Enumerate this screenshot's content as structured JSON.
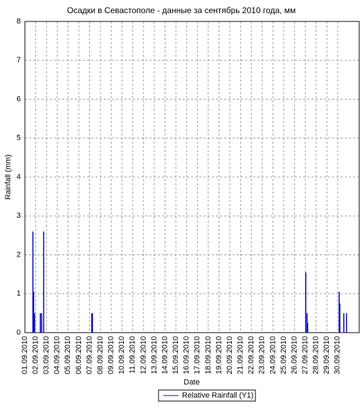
{
  "chart_data": {
    "type": "bar",
    "title": "Осадки в Севастополе - данные за сентябрь 2010 года, мм",
    "y_label": "Rainfall (mm)",
    "x_label": "Date",
    "xlim": [
      1,
      32
    ],
    "xticks": [
      {
        "value": 1,
        "label": "01.09.2010"
      },
      {
        "value": 2,
        "label": "02.09.2010"
      },
      {
        "value": 3,
        "label": "03.09.2010"
      },
      {
        "value": 4,
        "label": "04.09.2010"
      },
      {
        "value": 5,
        "label": "05.09.2010"
      },
      {
        "value": 6,
        "label": "06.09.2010"
      },
      {
        "value": 7,
        "label": "07.09.2010"
      },
      {
        "value": 8,
        "label": "08.09.2010"
      },
      {
        "value": 9,
        "label": "09.09.2010"
      },
      {
        "value": 10,
        "label": "10.09.2010"
      },
      {
        "value": 11,
        "label": "11.09.2010"
      },
      {
        "value": 12,
        "label": "12.09.2010"
      },
      {
        "value": 13,
        "label": "13.09.2010"
      },
      {
        "value": 14,
        "label": "14.09.2010"
      },
      {
        "value": 15,
        "label": "15.09.2010"
      },
      {
        "value": 16,
        "label": "16.09.2010"
      },
      {
        "value": 17,
        "label": "17.09.2010"
      },
      {
        "value": 18,
        "label": "18.09.2010"
      },
      {
        "value": 19,
        "label": "19.09.2010"
      },
      {
        "value": 20,
        "label": "20.09.2010"
      },
      {
        "value": 21,
        "label": "21.09.2010"
      },
      {
        "value": 22,
        "label": "22.09.2010"
      },
      {
        "value": 23,
        "label": "23.09.2010"
      },
      {
        "value": 24,
        "label": "24.09.2010"
      },
      {
        "value": 25,
        "label": "25.09.2010"
      },
      {
        "value": 26,
        "label": "26.09.2010"
      },
      {
        "value": 27,
        "label": "27.09.2010"
      },
      {
        "value": 28,
        "label": "28.09.2010"
      },
      {
        "value": 29,
        "label": "29.09.2010"
      },
      {
        "value": 30,
        "label": "30.09.2010"
      }
    ],
    "ylim": [
      0,
      8
    ],
    "yticks": [
      0,
      1,
      2,
      3,
      4,
      5,
      6,
      7,
      8
    ],
    "grid": true,
    "series": [
      {
        "name": "Relative Rainfall (Y1)",
        "color": "#0000cc",
        "x": [
          1.74,
          1.81,
          1.9,
          2.43,
          2.55,
          2.74,
          7.2,
          7.26,
          27.04,
          27.16,
          27.22,
          30.14,
          30.2,
          30.57,
          30.82
        ],
        "values": [
          2.6,
          1.05,
          0.5,
          0.5,
          0.5,
          2.6,
          0.5,
          0.5,
          1.55,
          0.5,
          0.25,
          1.05,
          0.75,
          0.5,
          0.5
        ]
      }
    ]
  }
}
